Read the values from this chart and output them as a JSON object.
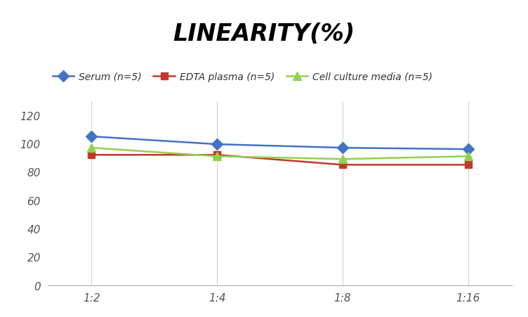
{
  "title": "LINEARITY(%)",
  "title_fontsize": 24,
  "title_style": "italic",
  "title_weight": "bold",
  "x_labels": [
    "1:2",
    "1:4",
    "1:8",
    "1:16"
  ],
  "x_positions": [
    0,
    1,
    2,
    3
  ],
  "series": [
    {
      "label": "Serum (n=5)",
      "values": [
        105,
        99.5,
        97,
        96
      ],
      "color": "#4472C4",
      "marker": "D",
      "marker_size": 8,
      "linewidth": 1.8
    },
    {
      "label": "EDTA plasma (n=5)",
      "values": [
        92,
        92,
        85,
        85
      ],
      "color": "#C0392B",
      "marker": "s",
      "marker_size": 7,
      "linewidth": 1.8
    },
    {
      "label": "Cell culture media (n=5)",
      "values": [
        97,
        91,
        89,
        91
      ],
      "color": "#92D050",
      "marker": "^",
      "marker_size": 8,
      "linewidth": 1.8
    }
  ],
  "ylim": [
    0,
    130
  ],
  "yticks": [
    0,
    20,
    40,
    60,
    80,
    100,
    120
  ],
  "background_color": "#ffffff",
  "grid_color": "#d3d3d3",
  "legend_fontsize": 10,
  "tick_fontsize": 11
}
